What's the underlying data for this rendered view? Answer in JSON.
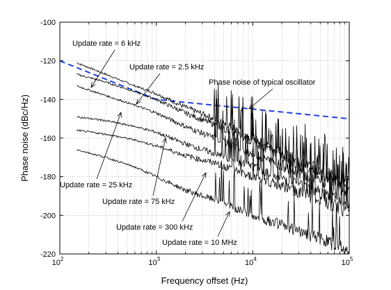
{
  "chart_data": {
    "type": "line",
    "title": "",
    "xlabel": "Frequency offset (Hz)",
    "ylabel": "Phase noise (dBc/Hz)",
    "xscale": "log",
    "xlim": [
      100,
      100000
    ],
    "ylim": [
      -220,
      -100
    ],
    "grid": "dotted",
    "x_ticks": [
      {
        "base": "10",
        "exp": "2",
        "value": 100
      },
      {
        "base": "10",
        "exp": "3",
        "value": 1000
      },
      {
        "base": "10",
        "exp": "4",
        "value": 10000
      },
      {
        "base": "10",
        "exp": "5",
        "value": 100000
      }
    ],
    "y_ticks": [
      "-100",
      "-120",
      "-140",
      "-160",
      "-180",
      "-200",
      "-220"
    ],
    "series": [
      {
        "label": "Phase noise of typical oscillator",
        "style": "dashed",
        "color": "#1f3fe0",
        "x": [
          100,
          1000,
          100000
        ],
        "y": [
          -120,
          -140,
          -150
        ]
      },
      {
        "label": "Update rate = 6 kHz",
        "style": "solid",
        "color": "#000000",
        "x": [
          150,
          300,
          600,
          1000,
          2000,
          4000,
          10000,
          30000,
          100000
        ],
        "y": [
          -121,
          -127,
          -133,
          -137,
          -144,
          -150,
          -160,
          -172,
          -183
        ]
      },
      {
        "label": "Update rate = 2.5 kHz",
        "style": "solid",
        "color": "#000000",
        "x": [
          150,
          300,
          600,
          1000,
          2000,
          4000,
          10000,
          30000,
          100000
        ],
        "y": [
          -127,
          -131,
          -136,
          -140,
          -147,
          -153,
          -162,
          -174,
          -185
        ]
      },
      {
        "label": "Update rate = 25 kHz",
        "style": "solid",
        "color": "#000000",
        "x": [
          150,
          300,
          600,
          1000,
          2000,
          4000,
          10000,
          30000,
          100000
        ],
        "y": [
          -133,
          -138,
          -143,
          -147,
          -154,
          -160,
          -168,
          -178,
          -188
        ]
      },
      {
        "label": "Update rate = 75 kHz",
        "style": "solid",
        "color": "#000000",
        "x": [
          150,
          300,
          600,
          1000,
          2000,
          4000,
          10000,
          30000,
          100000
        ],
        "y": [
          -149,
          -151,
          -154,
          -157,
          -163,
          -168,
          -175,
          -184,
          -194
        ]
      },
      {
        "label": "Update rate = 300 kHz",
        "style": "solid",
        "color": "#000000",
        "x": [
          150,
          300,
          600,
          1000,
          2000,
          4000,
          10000,
          30000,
          100000
        ],
        "y": [
          -156,
          -158,
          -161,
          -164,
          -169,
          -173,
          -180,
          -188,
          -198
        ]
      },
      {
        "label": "Update rate = 10 MHz",
        "style": "solid",
        "color": "#000000",
        "x": [
          150,
          300,
          600,
          1000,
          2000,
          4000,
          10000,
          30000,
          100000
        ],
        "y": [
          -166,
          -170,
          -175,
          -180,
          -187,
          -192,
          -200,
          -208,
          -218
        ]
      }
    ],
    "annotations": [
      {
        "text": "Update rate = 6 kHz",
        "series": 1
      },
      {
        "text": "Update rate = 2.5 kHz",
        "series": 2
      },
      {
        "text": "Phase noise of typical oscillator",
        "series": 0
      },
      {
        "text": "Update rate = 25 kHz",
        "series": 3
      },
      {
        "text": "Update rate = 75 kHz",
        "series": 4
      },
      {
        "text": "Update rate = 300 kHz",
        "series": 5
      },
      {
        "text": "Update rate = 10 MHz",
        "series": 6
      }
    ]
  }
}
